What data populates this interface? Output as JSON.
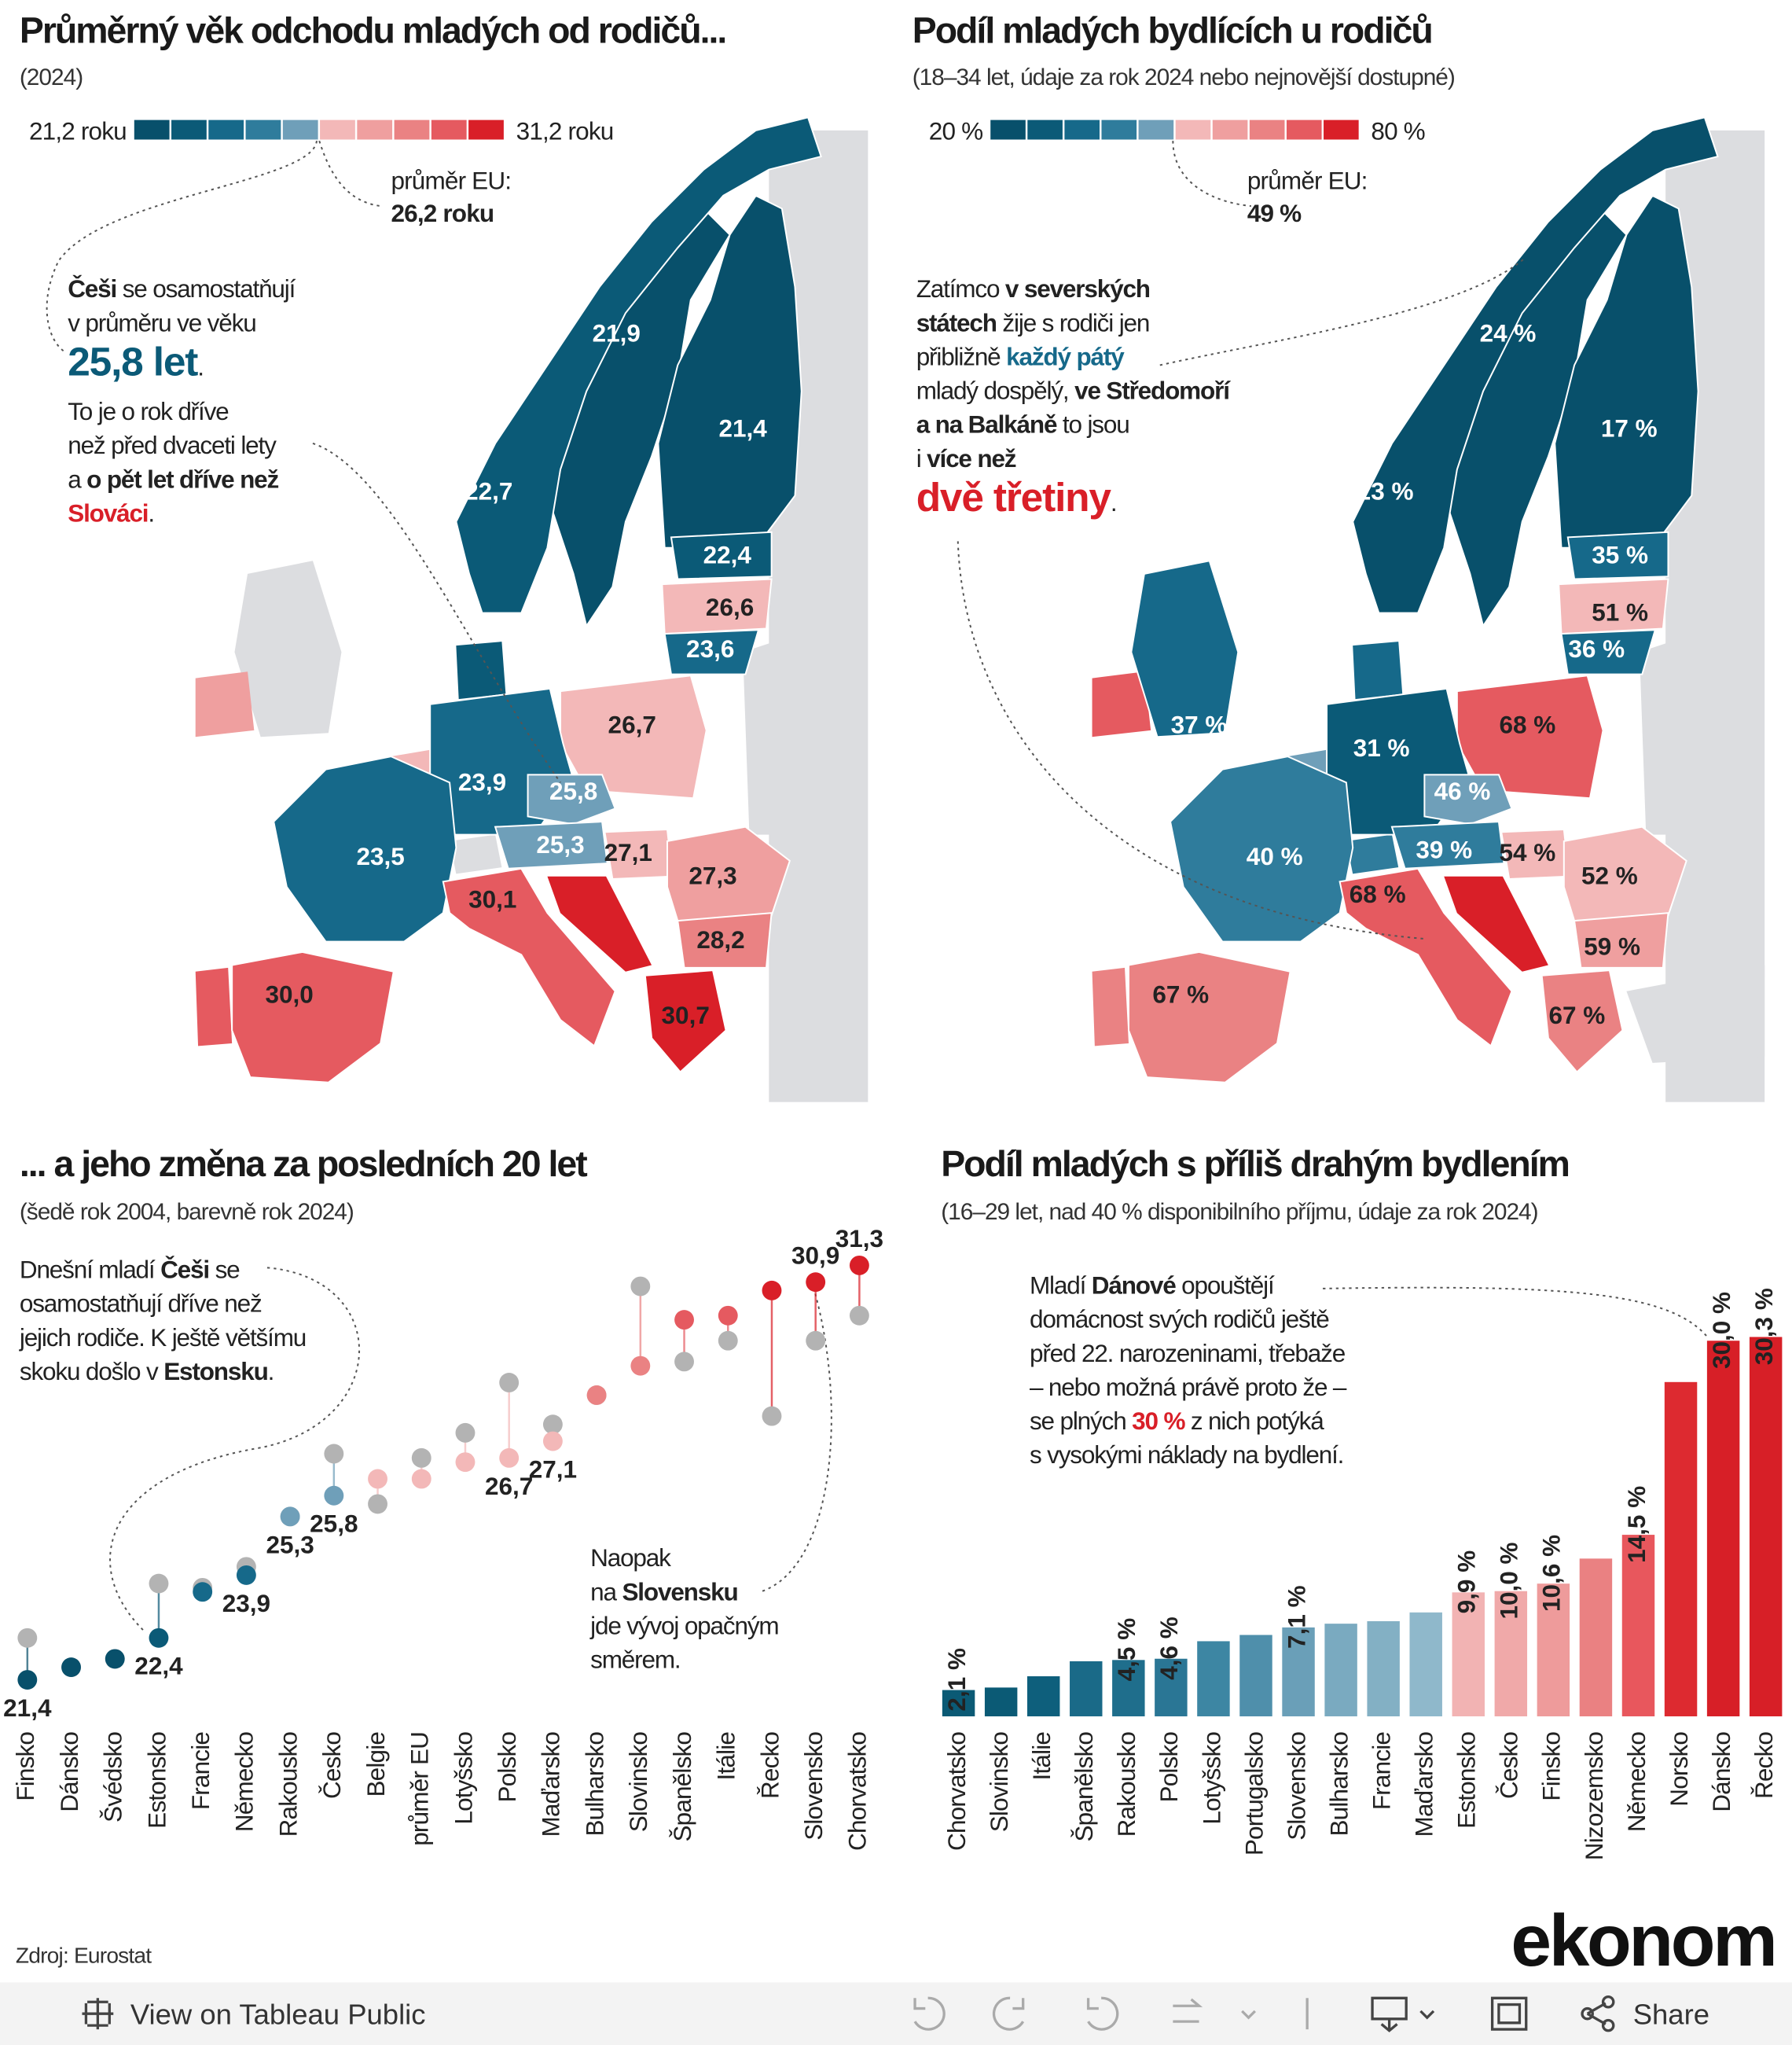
{
  "chart_data": [
    {
      "type": "choropleth",
      "title": "Průměrný věk odchodu mladých od rodičů...",
      "subtitle": "(2024)",
      "scale": [
        {
          "value": 21.2,
          "label": "21,2 roku"
        },
        {
          "value": 31.2,
          "label": "31,2 roku"
        }
      ],
      "colors": [
        "#08506b",
        "#0b5a77",
        "#16698a",
        "#2f7c9c",
        "#6f9fb9",
        "#f3b8b8",
        "#ef9f9f",
        "#ea8283",
        "#e55a60",
        "#d91f28"
      ],
      "eu_average_label": "průměr EU:",
      "eu_average": {
        "value": 26.2,
        "label": "26,2 roku"
      },
      "values": [
        21.9,
        21.4,
        22.7,
        22.4,
        26.6,
        23.6,
        26.7,
        23.9,
        25.8,
        23.5,
        25.3,
        27.1,
        27.3,
        30.1,
        28.2,
        30.0,
        30.7
      ],
      "value_labels": [
        "21,9",
        "21,4",
        "22,7",
        "22,4",
        "26,6",
        "23,6",
        "26,7",
        "23,9",
        "25,8",
        "23,5",
        "25,3",
        "27,1",
        "27,3",
        "30,1",
        "28,2",
        "30,0",
        "30,7"
      ],
      "annotation": [
        [
          {
            "text": "Češi",
            "style": "b"
          },
          {
            "text": " se osamostatňují"
          }
        ],
        [
          {
            "text": "v průměru ve věku"
          }
        ],
        [
          {
            "text": "25,8 let",
            "style": "big"
          },
          {
            "text": "."
          }
        ],
        [
          {
            "text": "To je o rok dříve"
          }
        ],
        [
          {
            "text": "než před dvaceti lety"
          }
        ],
        [
          {
            "text": "a "
          },
          {
            "text": "o pět let dříve než",
            "style": "b"
          }
        ],
        [
          {
            "text": "Slováci",
            "style": "red"
          },
          {
            "text": "."
          }
        ]
      ]
    },
    {
      "type": "choropleth",
      "title": "Podíl mladých bydlících u rodičů",
      "subtitle": "(18–34 let, údaje za rok 2024 nebo nejnovější dostupné)",
      "scale": [
        {
          "value": 20,
          "label": "20 %"
        },
        {
          "value": 80,
          "label": "80 %"
        }
      ],
      "colors": [
        "#08506b",
        "#0b5a77",
        "#16698a",
        "#2f7c9c",
        "#6f9fb9",
        "#f3b8b8",
        "#ef9f9f",
        "#ea8283",
        "#e55a60",
        "#d91f28"
      ],
      "eu_average_label": "průměr EU:",
      "eu_average": {
        "value": 49,
        "label": "49 %"
      },
      "values": [
        24,
        17,
        23,
        35,
        51,
        36,
        37,
        68,
        31,
        46,
        40,
        39,
        54,
        52,
        68,
        59,
        67,
        67
      ],
      "value_labels": [
        "24 %",
        "17 %",
        "23 %",
        "35 %",
        "51 %",
        "36 %",
        "37 %",
        "68 %",
        "31 %",
        "46 %",
        "40 %",
        "39 %",
        "54 %",
        "52 %",
        "68 %",
        "59 %",
        "67 %",
        "67 %"
      ],
      "annotation": [
        [
          {
            "text": "Zatímco "
          },
          {
            "text": "v severských",
            "style": "b"
          }
        ],
        [
          {
            "text": "státech",
            "style": "b"
          },
          {
            "text": " žije s rodiči jen"
          }
        ],
        [
          {
            "text": "přibližně "
          },
          {
            "text": "každý pátý",
            "style": "bblue"
          }
        ],
        [
          {
            "text": "mladý dospělý, "
          },
          {
            "text": "ve Středomoří",
            "style": "b"
          }
        ],
        [
          {
            "text": "a na Balkáně",
            "style": "b"
          },
          {
            "text": " to jsou"
          }
        ],
        [
          {
            "text": "i "
          },
          {
            "text": "více než",
            "style": "b"
          }
        ],
        [
          {
            "text": "dvě třetiny",
            "style": "bigred"
          },
          {
            "text": "."
          }
        ]
      ]
    },
    {
      "type": "dumbbell",
      "title": "... a jeho změna za posledních 20 let",
      "subtitle": "(šedě rok 2004, barevně rok 2024)",
      "categories": [
        "Finsko",
        "Dánsko",
        "Švédsko",
        "Estonsko",
        "Francie",
        "Německo",
        "Rakousko",
        "Česko",
        "Belgie",
        "průměr EU",
        "Lotyšsko",
        "Polsko",
        "Maďarsko",
        "Bulharsko",
        "Slovinsko",
        "Španělsko",
        "Itálie",
        "Řecko",
        "Slovensko",
        "Chorvatsko"
      ],
      "series": [
        {
          "color": "#b3b3b3",
          "values": [
            22.4,
            21.7,
            21.9,
            23.7,
            23.6,
            24.1,
            25.3,
            26.8,
            25.6,
            26.7,
            27.3,
            28.5,
            27.5,
            28.2,
            30.8,
            29.0,
            29.5,
            27.7,
            29.5,
            30.1
          ]
        },
        {
          "values": [
            21.4,
            21.7,
            21.9,
            22.4,
            23.5,
            23.9,
            25.3,
            25.8,
            26.2,
            26.2,
            26.6,
            26.7,
            27.1,
            28.2,
            28.9,
            30.0,
            30.1,
            30.7,
            30.9,
            31.3
          ],
          "value_labels": [
            "21,4",
            null,
            null,
            "22,4",
            null,
            "23,9",
            "25,3",
            "25,8",
            null,
            null,
            null,
            "26,7",
            "27,1",
            null,
            null,
            null,
            null,
            null,
            "30,9",
            "31,3"
          ]
        }
      ],
      "annotations": [
        [
          [
            {
              "text": "Dnešní mladí "
            },
            {
              "text": "Češi",
              "style": "b"
            },
            {
              "text": " se"
            }
          ],
          [
            {
              "text": "osamostatňují dříve než"
            }
          ],
          [
            {
              "text": "jejich rodiče. K ještě většímu"
            }
          ],
          [
            {
              "text": "skoku došlo v "
            },
            {
              "text": "Estonsku",
              "style": "b"
            },
            {
              "text": "."
            }
          ]
        ],
        [
          [
            {
              "text": "Naopak"
            }
          ],
          [
            {
              "text": "na "
            },
            {
              "text": "Slovensku",
              "style": "b"
            }
          ],
          [
            {
              "text": "jde vývoj opačným"
            }
          ],
          [
            {
              "text": "směrem."
            }
          ]
        ]
      ]
    },
    {
      "type": "bar",
      "title": "Podíl mladých s příliš drahým bydlením",
      "subtitle": "(16–29 let, nad 40 % disponibilního příjmu, údaje za rok 2024)",
      "categories": [
        "Chorvatsko",
        "Slovinsko",
        "Itálie",
        "Španělsko",
        "Rakousko",
        "Polsko",
        "Lotyšsko",
        "Portugalsko",
        "Slovensko",
        "Bulharsko",
        "Francie",
        "Maďarsko",
        "Estonsko",
        "Česko",
        "Finsko",
        "Nizozemsko",
        "Německo",
        "Norsko",
        "Dánsko",
        "Řecko"
      ],
      "values": [
        2.1,
        2.3,
        3.2,
        4.4,
        4.5,
        4.6,
        6.0,
        6.5,
        7.1,
        7.4,
        7.6,
        8.3,
        9.9,
        10.0,
        10.6,
        12.6,
        14.5,
        26.7,
        30.0,
        30.3
      ],
      "value_labels": [
        "2,1 %",
        null,
        null,
        null,
        "4,5 %",
        "4,6 %",
        null,
        null,
        "7,1 %",
        null,
        null,
        null,
        "9,9 %",
        "10,0 %",
        "10,6 %",
        null,
        "14,5 %",
        null,
        "30,0 %",
        "30,3 %"
      ],
      "colors": [
        "#0b5a75",
        "#0b5a75",
        "#0e5f7c",
        "#1a6a88",
        "#1f6e8c",
        "#2a7695",
        "#3d86a3",
        "#4f8fab",
        "#6a9fb8",
        "#7aaac0",
        "#83b0c4",
        "#8fb8cb",
        "#f2b3b3",
        "#f0a9a9",
        "#ee9b9b",
        "#ea8182",
        "#e8575d",
        "#dd2a30",
        "#d71f27",
        "#d71f27"
      ],
      "annotation": [
        [
          {
            "text": "Mladí "
          },
          {
            "text": "Dánové",
            "style": "b"
          },
          {
            "text": " opouštějí"
          }
        ],
        [
          {
            "text": "domácnost svých rodičů ještě"
          }
        ],
        [
          {
            "text": "před 22. narozeninami, třebaže"
          }
        ],
        [
          {
            "text": "– nebo možná právě proto že –"
          }
        ],
        [
          {
            "text": "se plných "
          },
          {
            "text": "30 %",
            "style": "bred"
          },
          {
            "text": " z nich potýká"
          }
        ],
        [
          {
            "text": "s vysokými náklady na bydlení."
          }
        ]
      ]
    }
  ],
  "footer": {
    "source": "Zdroj: Eurostat",
    "logo": "ekonom"
  },
  "toolbar": {
    "view": "View on Tableau Public",
    "share": "Share"
  }
}
